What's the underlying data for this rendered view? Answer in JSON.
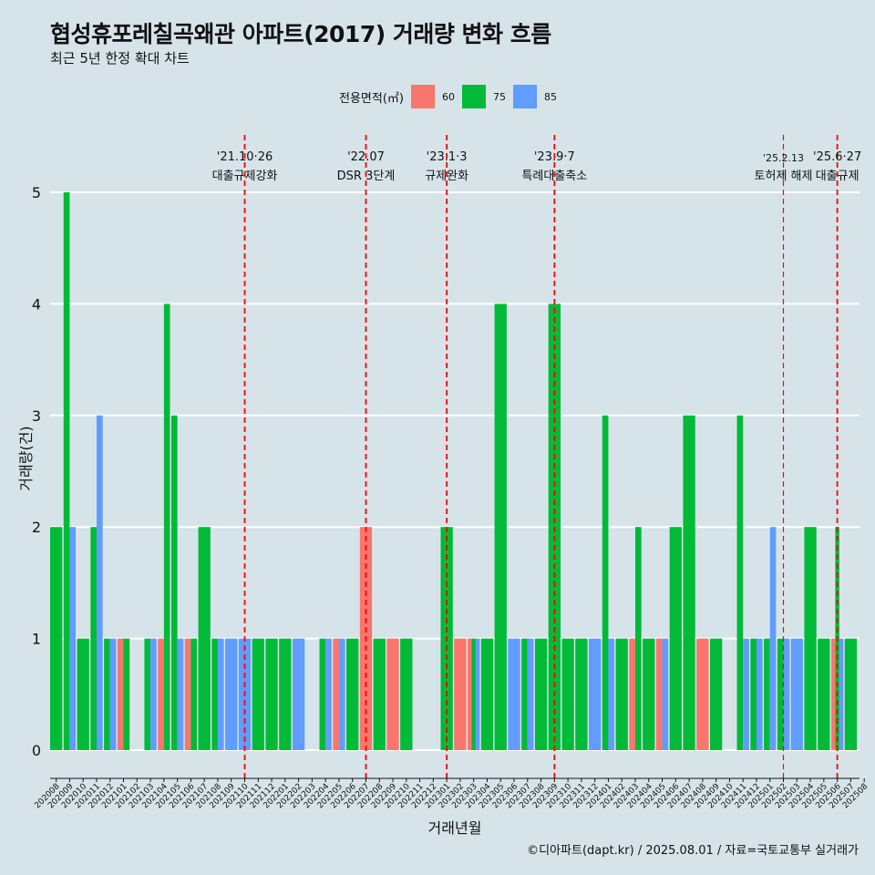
{
  "title": "협성휴포레칠곡왜관 아파트(2017) 거래량 변화 흐름",
  "subtitle": "최근 5년 한정 확대 차트",
  "legend": {
    "title": "전용면적(㎡)",
    "items": [
      {
        "label": "60",
        "color": "#f8766d"
      },
      {
        "label": "75",
        "color": "#00ba38"
      },
      {
        "label": "85",
        "color": "#619cff"
      }
    ]
  },
  "caption": "©디아파트(dapt.kr) / 2025.08.01 / 자료=국토교통부 실거래가",
  "chart_data": {
    "type": "bar",
    "xlabel": "거래년월",
    "ylabel": "거래량(건)",
    "ylim": [
      0,
      5
    ],
    "y_ticks": [
      0,
      1,
      2,
      3,
      4,
      5
    ],
    "grid": "horizontal",
    "legend_position": "top",
    "categories": [
      "202008",
      "202009",
      "202010",
      "202011",
      "202012",
      "202101",
      "202102",
      "202103",
      "202104",
      "202105",
      "202106",
      "202107",
      "202108",
      "202109",
      "202110",
      "202111",
      "202112",
      "202201",
      "202202",
      "202203",
      "202204",
      "202205",
      "202206",
      "202207",
      "202208",
      "202209",
      "202210",
      "202211",
      "202212",
      "202301",
      "202302",
      "202303",
      "202304",
      "202305",
      "202306",
      "202307",
      "202308",
      "202309",
      "202310",
      "202311",
      "202312",
      "202401",
      "202402",
      "202403",
      "202404",
      "202405",
      "202406",
      "202407",
      "202408",
      "202409",
      "202410",
      "202411",
      "202412",
      "202501",
      "202502",
      "202503",
      "202504",
      "202505",
      "202506",
      "202507",
      "202508"
    ],
    "series": [
      {
        "name": "60",
        "color": "#f8766d",
        "values": [
          0,
          0,
          0,
          0,
          0,
          1,
          0,
          0,
          1,
          0,
          1,
          0,
          0,
          0,
          0,
          0,
          0,
          0,
          0,
          0,
          0,
          1,
          0,
          2,
          0,
          1,
          0,
          0,
          0,
          0,
          1,
          1,
          0,
          0,
          0,
          0,
          0,
          0,
          0,
          0,
          0,
          0,
          0,
          1,
          0,
          1,
          0,
          0,
          1,
          0,
          0,
          0,
          0,
          0,
          0,
          0,
          0,
          0,
          1,
          0,
          0
        ]
      },
      {
        "name": "75",
        "color": "#00ba38",
        "values": [
          2,
          5,
          1,
          2,
          1,
          1,
          0,
          1,
          4,
          3,
          1,
          2,
          1,
          0,
          0,
          1,
          1,
          1,
          0,
          0,
          1,
          0,
          1,
          0,
          1,
          0,
          1,
          0,
          0,
          2,
          0,
          1,
          1,
          4,
          0,
          1,
          1,
          4,
          1,
          1,
          0,
          3,
          1,
          2,
          1,
          0,
          2,
          3,
          0,
          1,
          0,
          3,
          1,
          1,
          1,
          0,
          2,
          1,
          2,
          1,
          0
        ]
      },
      {
        "name": "85",
        "color": "#619cff",
        "values": [
          0,
          2,
          0,
          3,
          1,
          0,
          0,
          1,
          0,
          1,
          0,
          0,
          1,
          1,
          1,
          0,
          0,
          0,
          1,
          0,
          1,
          1,
          0,
          0,
          0,
          0,
          0,
          0,
          0,
          0,
          0,
          1,
          0,
          0,
          1,
          1,
          0,
          0,
          0,
          0,
          1,
          1,
          0,
          0,
          0,
          1,
          0,
          0,
          0,
          0,
          0,
          1,
          1,
          2,
          1,
          1,
          0,
          0,
          1,
          0,
          0
        ]
      }
    ],
    "annotations": [
      {
        "month": "202110",
        "date": "'21.10·26",
        "text": "대출규제강화"
      },
      {
        "month": "202207",
        "date": "'22.07",
        "text": "DSR 3단계"
      },
      {
        "month": "202301",
        "date": "'23.1·3",
        "text": "규제완화"
      },
      {
        "month": "202309",
        "date": "'23.9·7",
        "text": "특례대출축소"
      },
      {
        "month": "202502",
        "date": "'25.2.13",
        "text": "토허제 해제"
      },
      {
        "month": "202506",
        "date": "'25.6·27",
        "text": "대출규제"
      }
    ],
    "reference_line_color": "#ff0000"
  }
}
